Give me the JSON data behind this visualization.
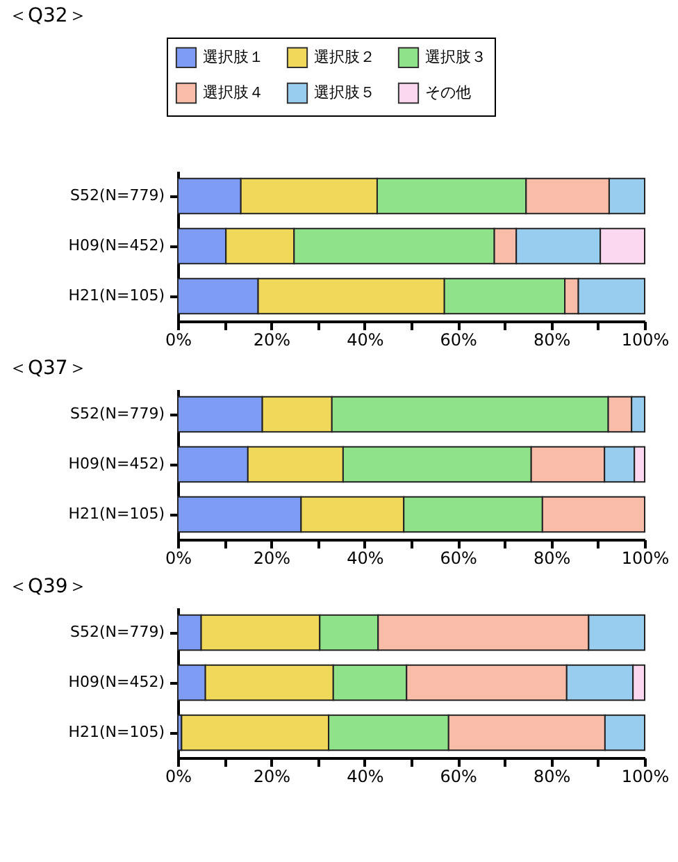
{
  "chart_data": [
    {
      "type": "bar",
      "orientation": "horizontal",
      "stacked": true,
      "title": "＜Q32＞",
      "legend": "top",
      "categories": [
        "S52(N=779)",
        "H09(N=452)",
        "H21(N=105)"
      ],
      "xlim": [
        0,
        100
      ],
      "xticks": [
        {
          "value": 0,
          "label": "0%"
        },
        {
          "value": 10,
          "label": null
        },
        {
          "value": 20,
          "label": "20%"
        },
        {
          "value": 30,
          "label": null
        },
        {
          "value": 40,
          "label": "40%"
        },
        {
          "value": 50,
          "label": null
        },
        {
          "value": 60,
          "label": "60%"
        },
        {
          "value": 70,
          "label": null
        },
        {
          "value": 80,
          "label": "80%"
        },
        {
          "value": 90,
          "label": null
        },
        {
          "value": 100,
          "label": "100%"
        }
      ],
      "series": [
        {
          "name": "選択肢１",
          "color": "#7f9cf5",
          "values": [
            13.5,
            10.3,
            17.2
          ]
        },
        {
          "name": "選択肢２",
          "color": "#f0d85a",
          "values": [
            29.2,
            14.6,
            39.9
          ]
        },
        {
          "name": "選択肢３",
          "color": "#90e28a",
          "values": [
            31.9,
            42.9,
            25.8
          ]
        },
        {
          "name": "選択肢４",
          "color": "#f8bca8",
          "values": [
            17.8,
            4.7,
            2.9
          ]
        },
        {
          "name": "選択肢５",
          "color": "#98cdf0",
          "values": [
            7.6,
            18.0,
            14.2
          ]
        },
        {
          "name": "その他",
          "color": "#fcd8f0",
          "values": [
            null,
            9.5,
            null
          ]
        }
      ]
    },
    {
      "type": "bar",
      "orientation": "horizontal",
      "stacked": true,
      "title": "＜Q37＞",
      "categories": [
        "S52(N=779)",
        "H09(N=452)",
        "H21(N=105)"
      ],
      "xlim": [
        0,
        100
      ],
      "xticks": [
        {
          "value": 0,
          "label": "0%"
        },
        {
          "value": 10,
          "label": null
        },
        {
          "value": 20,
          "label": "20%"
        },
        {
          "value": 30,
          "label": null
        },
        {
          "value": 40,
          "label": "40%"
        },
        {
          "value": 50,
          "label": null
        },
        {
          "value": 60,
          "label": "60%"
        },
        {
          "value": 70,
          "label": null
        },
        {
          "value": 80,
          "label": "80%"
        },
        {
          "value": 90,
          "label": null
        },
        {
          "value": 100,
          "label": "100%"
        }
      ],
      "series": [
        {
          "color": "#7f9cf5",
          "values": [
            18.1,
            15.0,
            26.4
          ]
        },
        {
          "color": "#f0d85a",
          "values": [
            14.9,
            20.4,
            22.0
          ]
        },
        {
          "color": "#90e28a",
          "values": [
            59.2,
            40.3,
            29.7
          ]
        },
        {
          "color": "#f8bca8",
          "values": [
            5.0,
            15.7,
            21.9
          ]
        },
        {
          "color": "#98cdf0",
          "values": [
            2.8,
            6.4,
            null
          ]
        },
        {
          "color": "#fcd8f0",
          "values": [
            null,
            2.2,
            null
          ]
        }
      ]
    },
    {
      "type": "bar",
      "orientation": "horizontal",
      "stacked": true,
      "title": "＜Q39＞",
      "categories": [
        "S52(N=779)",
        "H09(N=452)",
        "H21(N=105)"
      ],
      "xlim": [
        0,
        100
      ],
      "xticks": [
        {
          "value": 0,
          "label": "0%"
        },
        {
          "value": 10,
          "label": null
        },
        {
          "value": 20,
          "label": "20%"
        },
        {
          "value": 30,
          "label": null
        },
        {
          "value": 40,
          "label": "40%"
        },
        {
          "value": 50,
          "label": null
        },
        {
          "value": 60,
          "label": "60%"
        },
        {
          "value": 70,
          "label": null
        },
        {
          "value": 80,
          "label": "80%"
        },
        {
          "value": 90,
          "label": null
        },
        {
          "value": 100,
          "label": "100%"
        }
      ],
      "series": [
        {
          "color": "#7f9cf5",
          "values": [
            5.0,
            5.9,
            0.8
          ]
        },
        {
          "color": "#f0d85a",
          "values": [
            25.4,
            27.4,
            31.5
          ]
        },
        {
          "color": "#90e28a",
          "values": [
            12.5,
            15.7,
            25.7
          ]
        },
        {
          "color": "#f8bca8",
          "values": [
            45.1,
            34.3,
            33.5
          ]
        },
        {
          "color": "#98cdf0",
          "values": [
            12.0,
            14.2,
            8.5
          ]
        },
        {
          "color": "#fcd8f0",
          "values": [
            null,
            2.5,
            null
          ]
        }
      ]
    }
  ]
}
